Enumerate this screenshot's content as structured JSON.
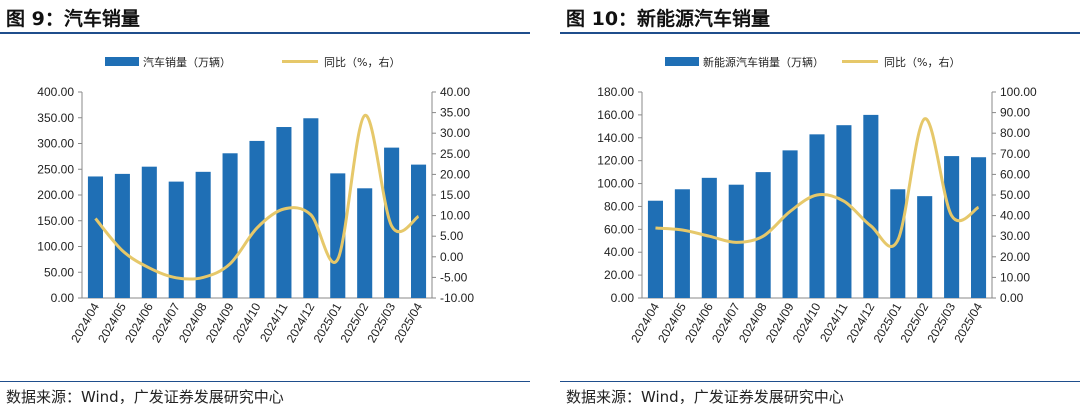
{
  "figures": [
    {
      "title": "图 9：汽车销量",
      "source": "数据来源：Wind，广发证券发展研究中心"
    },
    {
      "title": "图 10：新能源汽车销量",
      "source": "数据来源：Wind，广发证券发展研究中心"
    }
  ],
  "colors": {
    "bar": "#1f6fb5",
    "line": "#e6c86a",
    "rule": "#1f4e8c"
  },
  "chart_data": [
    {
      "type": "bar",
      "categories": [
        "2024/04",
        "2024/05",
        "2024/06",
        "2024/07",
        "2024/08",
        "2024/09",
        "2024/10",
        "2024/11",
        "2024/12",
        "2025/01",
        "2025/02",
        "2025/03",
        "2025/04"
      ],
      "series": [
        {
          "name": "汽车销量（万辆）",
          "type": "bar",
          "axis": "left",
          "values": [
            236,
            241,
            255,
            226,
            245,
            281,
            305,
            332,
            349,
            242,
            213,
            292,
            259
          ]
        },
        {
          "name": "同比（%，右）",
          "type": "line",
          "axis": "right",
          "values": [
            9.3,
            1.5,
            -2.7,
            -5.1,
            -5.0,
            -1.7,
            7.0,
            11.6,
            10.2,
            -0.6,
            34.3,
            7.5,
            9.8
          ]
        }
      ],
      "ylim_left": [
        0,
        400
      ],
      "yticks_left": [
        "0.00",
        "50.00",
        "100.00",
        "150.00",
        "200.00",
        "250.00",
        "300.00",
        "350.00",
        "400.00"
      ],
      "ylim_right": [
        -10,
        40
      ],
      "yticks_right": [
        "-10.00",
        "-5.00",
        "0.00",
        "5.00",
        "10.00",
        "15.00",
        "20.00",
        "25.00",
        "30.00",
        "35.00",
        "40.00"
      ],
      "legend_placement": "top",
      "grid": false
    },
    {
      "type": "bar",
      "categories": [
        "2024/04",
        "2024/05",
        "2024/06",
        "2024/07",
        "2024/08",
        "2024/09",
        "2024/10",
        "2024/11",
        "2024/12",
        "2025/01",
        "2025/02",
        "2025/03",
        "2025/04"
      ],
      "series": [
        {
          "name": "新能源汽车销量（万辆）",
          "type": "bar",
          "axis": "left",
          "values": [
            85,
            95,
            105,
            99,
            110,
            129,
            143,
            151,
            160,
            95,
            89,
            124,
            123
          ]
        },
        {
          "name": "同比（%，右）",
          "type": "line",
          "axis": "right",
          "values": [
            34,
            33,
            30,
            27,
            30,
            42,
            50,
            47,
            35,
            28,
            87,
            40,
            44
          ]
        }
      ],
      "ylim_left": [
        0,
        180
      ],
      "yticks_left": [
        "0.00",
        "20.00",
        "40.00",
        "60.00",
        "80.00",
        "100.00",
        "120.00",
        "140.00",
        "160.00",
        "180.00"
      ],
      "ylim_right": [
        0,
        100
      ],
      "yticks_right": [
        "0.00",
        "10.00",
        "20.00",
        "30.00",
        "40.00",
        "50.00",
        "60.00",
        "70.00",
        "80.00",
        "90.00",
        "100.00"
      ],
      "legend_placement": "top",
      "grid": false
    }
  ]
}
